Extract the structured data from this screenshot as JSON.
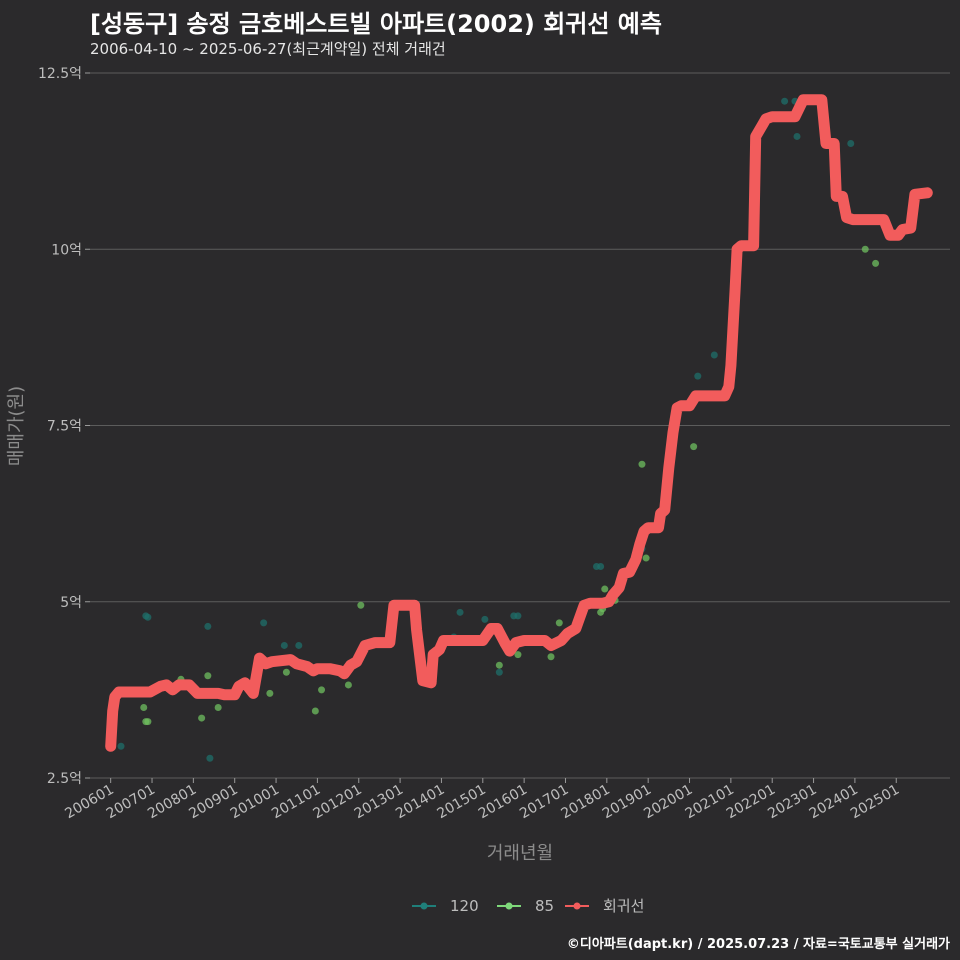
{
  "chart_data": {
    "type": "line",
    "title": "[성동구] 송정 금호베스트빌 아파트(2002) 회귀선 예측",
    "subtitle": "2006-04-10 ~ 2025-06-27(최근계약일) 전체 거래건",
    "xlabel": "거래년월",
    "ylabel": "매매가(원)",
    "credit": "©디아파트(dapt.kr) / 2025.07.23 / 자료=국토교통부 실거래가",
    "ylim": [
      2.5,
      12.5
    ],
    "xlim": [
      2005.5,
      2026.3
    ],
    "y_ticks": [
      {
        "value": 2.5,
        "label": "2.5억"
      },
      {
        "value": 5,
        "label": "5억"
      },
      {
        "value": 7.5,
        "label": "7.5억"
      },
      {
        "value": 10,
        "label": "10억"
      },
      {
        "value": 12.5,
        "label": "12.5억"
      }
    ],
    "x_ticks": [
      {
        "value": 2006.0,
        "label": "200601"
      },
      {
        "value": 2007.0,
        "label": "200701"
      },
      {
        "value": 2008.0,
        "label": "200801"
      },
      {
        "value": 2009.0,
        "label": "200901"
      },
      {
        "value": 2010.0,
        "label": "201001"
      },
      {
        "value": 2011.0,
        "label": "201101"
      },
      {
        "value": 2012.0,
        "label": "201201"
      },
      {
        "value": 2013.0,
        "label": "201301"
      },
      {
        "value": 2014.0,
        "label": "201401"
      },
      {
        "value": 2015.0,
        "label": "201501"
      },
      {
        "value": 2016.0,
        "label": "201601"
      },
      {
        "value": 2017.0,
        "label": "201701"
      },
      {
        "value": 2018.0,
        "label": "201801"
      },
      {
        "value": 2019.0,
        "label": "201901"
      },
      {
        "value": 2020.0,
        "label": "202001"
      },
      {
        "value": 2021.0,
        "label": "202101"
      },
      {
        "value": 2022.0,
        "label": "202201"
      },
      {
        "value": 2023.0,
        "label": "202301"
      },
      {
        "value": 2024.0,
        "label": "202401"
      },
      {
        "value": 2025.0,
        "label": "202501"
      }
    ],
    "legend": [
      {
        "name": "120",
        "color": "#1f7f7a"
      },
      {
        "name": "85",
        "color": "#7ed87a"
      },
      {
        "name": "회귀선",
        "color": "#f25c5c"
      }
    ],
    "series": [
      {
        "name": "120",
        "kind": "scatter",
        "color": "#1f6f6a",
        "points": [
          [
            2006.25,
            2.95
          ],
          [
            2006.85,
            4.8
          ],
          [
            2006.9,
            4.78
          ],
          [
            2008.35,
            4.65
          ],
          [
            2008.4,
            2.78
          ],
          [
            2009.7,
            4.7
          ],
          [
            2010.2,
            4.38
          ],
          [
            2010.55,
            4.38
          ],
          [
            2014.3,
            4.5
          ],
          [
            2014.45,
            4.85
          ],
          [
            2015.05,
            4.75
          ],
          [
            2015.4,
            4.0
          ],
          [
            2015.75,
            4.8
          ],
          [
            2015.85,
            4.8
          ],
          [
            2017.75,
            5.5
          ],
          [
            2017.85,
            5.5
          ],
          [
            2018.85,
            5.75
          ],
          [
            2020.2,
            8.2
          ],
          [
            2020.6,
            8.5
          ],
          [
            2022.3,
            12.1
          ],
          [
            2022.55,
            12.1
          ],
          [
            2022.6,
            11.6
          ],
          [
            2023.9,
            11.5
          ]
        ]
      },
      {
        "name": "85",
        "kind": "scatter",
        "color": "#6fbf5f",
        "points": [
          [
            2006.8,
            3.5
          ],
          [
            2006.85,
            3.3
          ],
          [
            2006.9,
            3.3
          ],
          [
            2007.55,
            3.75
          ],
          [
            2007.7,
            3.9
          ],
          [
            2008.2,
            3.35
          ],
          [
            2008.35,
            3.95
          ],
          [
            2008.6,
            3.5
          ],
          [
            2009.85,
            3.7
          ],
          [
            2010.25,
            4.0
          ],
          [
            2010.95,
            3.45
          ],
          [
            2011.1,
            3.75
          ],
          [
            2011.75,
            3.82
          ],
          [
            2012.05,
            4.95
          ],
          [
            2013.8,
            3.87
          ],
          [
            2015.4,
            4.1
          ],
          [
            2015.85,
            4.25
          ],
          [
            2016.65,
            4.22
          ],
          [
            2016.85,
            4.7
          ],
          [
            2017.85,
            4.85
          ],
          [
            2017.9,
            4.9
          ],
          [
            2017.95,
            5.18
          ],
          [
            2018.2,
            5.02
          ],
          [
            2018.95,
            5.62
          ],
          [
            2018.85,
            6.95
          ],
          [
            2020.1,
            7.2
          ],
          [
            2020.05,
            7.8
          ],
          [
            2024.25,
            10.0
          ],
          [
            2024.5,
            9.8
          ]
        ]
      },
      {
        "name": "회귀선",
        "kind": "line",
        "color": "#f25c5c",
        "points": [
          [
            2006.0,
            2.95
          ],
          [
            2006.05,
            3.45
          ],
          [
            2006.1,
            3.65
          ],
          [
            2006.2,
            3.72
          ],
          [
            2006.6,
            3.72
          ],
          [
            2006.95,
            3.72
          ],
          [
            2007.2,
            3.8
          ],
          [
            2007.35,
            3.82
          ],
          [
            2007.5,
            3.75
          ],
          [
            2007.65,
            3.82
          ],
          [
            2007.9,
            3.82
          ],
          [
            2008.1,
            3.7
          ],
          [
            2008.6,
            3.7
          ],
          [
            2008.75,
            3.68
          ],
          [
            2009.0,
            3.68
          ],
          [
            2009.1,
            3.8
          ],
          [
            2009.25,
            3.85
          ],
          [
            2009.45,
            3.7
          ],
          [
            2009.6,
            4.2
          ],
          [
            2009.75,
            4.12
          ],
          [
            2009.9,
            4.15
          ],
          [
            2010.35,
            4.18
          ],
          [
            2010.5,
            4.12
          ],
          [
            2010.75,
            4.08
          ],
          [
            2010.9,
            4.02
          ],
          [
            2011.0,
            4.05
          ],
          [
            2011.3,
            4.05
          ],
          [
            2011.55,
            4.02
          ],
          [
            2011.65,
            3.98
          ],
          [
            2011.8,
            4.1
          ],
          [
            2011.95,
            4.15
          ],
          [
            2012.15,
            4.38
          ],
          [
            2012.4,
            4.42
          ],
          [
            2012.75,
            4.42
          ],
          [
            2012.85,
            4.95
          ],
          [
            2013.1,
            4.95
          ],
          [
            2013.35,
            4.95
          ],
          [
            2013.4,
            4.6
          ],
          [
            2013.55,
            3.88
          ],
          [
            2013.75,
            3.85
          ],
          [
            2013.8,
            4.25
          ],
          [
            2013.95,
            4.32
          ],
          [
            2014.05,
            4.45
          ],
          [
            2014.6,
            4.45
          ],
          [
            2014.8,
            4.45
          ],
          [
            2015.0,
            4.45
          ],
          [
            2015.2,
            4.62
          ],
          [
            2015.35,
            4.62
          ],
          [
            2015.55,
            4.4
          ],
          [
            2015.65,
            4.3
          ],
          [
            2015.8,
            4.42
          ],
          [
            2016.0,
            4.45
          ],
          [
            2016.5,
            4.45
          ],
          [
            2016.65,
            4.38
          ],
          [
            2016.9,
            4.45
          ],
          [
            2017.05,
            4.55
          ],
          [
            2017.25,
            4.62
          ],
          [
            2017.45,
            4.95
          ],
          [
            2017.6,
            4.98
          ],
          [
            2017.9,
            4.98
          ],
          [
            2018.05,
            5.0
          ],
          [
            2018.15,
            5.1
          ],
          [
            2018.3,
            5.2
          ],
          [
            2018.4,
            5.4
          ],
          [
            2018.55,
            5.42
          ],
          [
            2018.7,
            5.6
          ],
          [
            2018.8,
            5.82
          ],
          [
            2018.9,
            6.0
          ],
          [
            2019.0,
            6.05
          ],
          [
            2019.15,
            6.05
          ],
          [
            2019.25,
            6.05
          ],
          [
            2019.3,
            6.25
          ],
          [
            2019.4,
            6.3
          ],
          [
            2019.5,
            6.9
          ],
          [
            2019.6,
            7.4
          ],
          [
            2019.7,
            7.75
          ],
          [
            2019.8,
            7.78
          ],
          [
            2020.0,
            7.78
          ],
          [
            2020.15,
            7.92
          ],
          [
            2020.5,
            7.92
          ],
          [
            2020.75,
            7.92
          ],
          [
            2020.85,
            7.92
          ],
          [
            2020.95,
            8.05
          ],
          [
            2021.0,
            8.35
          ],
          [
            2021.1,
            9.4
          ],
          [
            2021.15,
            10.0
          ],
          [
            2021.25,
            10.05
          ],
          [
            2021.55,
            10.05
          ],
          [
            2021.6,
            11.6
          ],
          [
            2021.75,
            11.75
          ],
          [
            2021.85,
            11.85
          ],
          [
            2022.0,
            11.88
          ],
          [
            2022.55,
            11.88
          ],
          [
            2022.75,
            12.12
          ],
          [
            2023.05,
            12.12
          ],
          [
            2023.2,
            12.12
          ],
          [
            2023.3,
            11.5
          ],
          [
            2023.5,
            11.5
          ],
          [
            2023.55,
            10.75
          ],
          [
            2023.7,
            10.75
          ],
          [
            2023.8,
            10.45
          ],
          [
            2023.95,
            10.42
          ],
          [
            2024.35,
            10.42
          ],
          [
            2024.55,
            10.42
          ],
          [
            2024.7,
            10.42
          ],
          [
            2024.85,
            10.2
          ],
          [
            2025.05,
            10.2
          ],
          [
            2025.15,
            10.28
          ],
          [
            2025.35,
            10.3
          ],
          [
            2025.45,
            10.78
          ],
          [
            2025.75,
            10.8
          ]
        ]
      }
    ]
  }
}
